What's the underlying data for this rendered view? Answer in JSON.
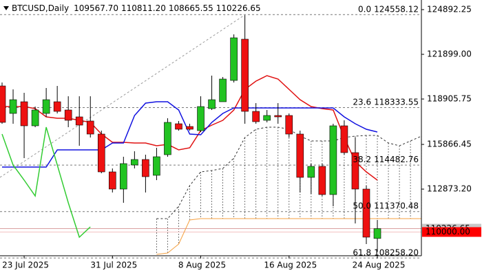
{
  "chart_data": {
    "type": "candlestick",
    "symbol": "BTCUSD,Daily",
    "header_values": [
      109567.7,
      110811.2,
      108665.55,
      110226.65
    ],
    "header_value_labels": [
      "109567.70",
      "110811.20",
      "108665.55",
      "110226.65"
    ],
    "categories": [
      null,
      null,
      "23 Jul 2025",
      null,
      null,
      null,
      null,
      null,
      null,
      null,
      "31 Jul 2025",
      null,
      null,
      null,
      null,
      null,
      null,
      null,
      "8 Aug 2025",
      null,
      null,
      null,
      null,
      null,
      null,
      null,
      "16 Aug 2025",
      null,
      null,
      null,
      null,
      null,
      null,
      null,
      "24 Aug 2025",
      null,
      null,
      null,
      null
    ],
    "open": [
      119782,
      117941,
      118723,
      117112,
      117941,
      118723,
      118171,
      117710,
      117434,
      116559,
      114027,
      112876,
      114488,
      114856,
      113797,
      115178,
      117250,
      117066,
      116790,
      118263,
      118723,
      120151,
      122913,
      118079,
      117480,
      117803,
      117803,
      116559,
      113659,
      114396,
      112508,
      117112,
      115316,
      112876,
      109567.7,
      null,
      null,
      null,
      null
    ],
    "high": [
      120012,
      119552,
      119321,
      118401,
      119644,
      119782,
      119091,
      119091,
      119091,
      116790,
      114258,
      115040,
      115408,
      115178,
      115639,
      117618,
      117434,
      117250,
      119091,
      120473,
      120381,
      123235,
      124520,
      118631,
      118171,
      118631,
      117941,
      116790,
      114580,
      114580,
      117250,
      117480,
      116329,
      113106,
      110811.2,
      null,
      null,
      null,
      null
    ],
    "low": [
      117250,
      117250,
      114948,
      117020,
      117710,
      117941,
      117020,
      115777,
      116329,
      113935,
      112646,
      111956,
      114258,
      112646,
      113475,
      115040,
      116790,
      116790,
      116698,
      118171,
      118723,
      120012,
      117250,
      117250,
      117342,
      117250,
      116329,
      112646,
      112554,
      112416,
      111725,
      115178,
      110574,
      109193,
      108665.55,
      null,
      null,
      null,
      null
    ],
    "close": [
      117342,
      118861,
      117112,
      118171,
      118861,
      118079,
      117480,
      117158,
      116559,
      114027,
      112876,
      114580,
      114856,
      113705,
      115040,
      117342,
      116882,
      116882,
      118401,
      118861,
      120243,
      123005,
      118079,
      117388,
      117803,
      117710,
      116559,
      113659,
      114396,
      112508,
      117112,
      115316,
      112876,
      109654,
      110226.65,
      null,
      null,
      null,
      null
    ],
    "up_color": "#22c322",
    "down_color": "#ee1111",
    "indicators": [
      {
        "color": "#e01010",
        "style": "solid",
        "values": [
          118401,
          118401,
          118401,
          118263,
          117710,
          117618,
          117618,
          117480,
          117342,
          116559,
          116007,
          116007,
          115961,
          115961,
          115777,
          115869,
          115500,
          115639,
          116790,
          117158,
          117480,
          118171,
          119552,
          120104,
          120473,
          120243,
          119552,
          118861,
          118401,
          118263,
          118171,
          116329,
          114718,
          114027,
          113475,
          null,
          null,
          null,
          null
        ]
      },
      {
        "color": "#1010e0",
        "style": "solid",
        "values": [
          114350,
          114350,
          114350,
          114350,
          114350,
          115500,
          115500,
          115500,
          115500,
          115500,
          115961,
          115961,
          117803,
          118631,
          118723,
          118723,
          118171,
          116559,
          116513,
          117342,
          117941,
          118309,
          118309,
          118309,
          118309,
          118309,
          118309,
          118309,
          118309,
          118309,
          118309,
          117710,
          117250,
          116882,
          116698,
          null,
          null,
          null,
          null
        ]
      },
      {
        "color": "#33cc33",
        "style": "solid",
        "values": [
          116559,
          114488,
          113475,
          112416,
          117020,
          114488,
          111956,
          109654,
          110344,
          null,
          null,
          null,
          null,
          null,
          null,
          null,
          null,
          null,
          null,
          null,
          null,
          null,
          null,
          null,
          null,
          null,
          null,
          null,
          null,
          null,
          null,
          null,
          null,
          null,
          null,
          null,
          null,
          null,
          null
        ]
      },
      {
        "color": "#333333",
        "style": "cloud-upper",
        "values": [
          null,
          null,
          null,
          null,
          null,
          null,
          null,
          null,
          null,
          null,
          null,
          null,
          null,
          null,
          110896,
          110896,
          111725,
          113106,
          114027,
          114119,
          114258,
          114948,
          116329,
          116882,
          117020,
          117020,
          116882,
          116421,
          116099,
          116099,
          116099,
          116329,
          116421,
          116467,
          116467,
          115961,
          115777,
          116099,
          116421
        ]
      },
      {
        "color": "#f5a040",
        "style": "cloud-lower",
        "values": [
          null,
          null,
          null,
          null,
          null,
          null,
          null,
          null,
          null,
          null,
          null,
          null,
          null,
          null,
          108502,
          108594,
          109193,
          110804,
          110896,
          110896,
          110896,
          110896,
          110896,
          110896,
          110896,
          110896,
          110896,
          110896,
          110896,
          110896,
          110896,
          110896,
          110896,
          110896,
          110896,
          110896,
          110896,
          110896,
          110896
        ]
      }
    ],
    "fib_levels": [
      {
        "level": "0.0",
        "value": 124558.12,
        "label": "124558.12"
      },
      {
        "level": "23.6",
        "value": 118333.55,
        "label": "118333.55"
      },
      {
        "level": "38.2",
        "value": 114482.76,
        "label": "114482.76"
      },
      {
        "level": "50.0",
        "value": 111370.48,
        "label": "111370.48"
      },
      {
        "level": "61.8",
        "value": 108258.2,
        "label": "108258.20"
      }
    ],
    "price_markers": [
      {
        "value": 110226.65,
        "label": "110226.65",
        "color": "#c8c8c8"
      },
      {
        "value": 110000,
        "label": "110000.00",
        "color": "#ff0000"
      }
    ],
    "ylim": [
      108410,
      125537
    ],
    "yticks": [
      124892.25,
      {
        "value": 121899,
        "label": "121899.00"
      },
      118905.75,
      115866.45,
      {
        "value": 112873.2,
        "label": "112873.20"
      }
    ]
  }
}
